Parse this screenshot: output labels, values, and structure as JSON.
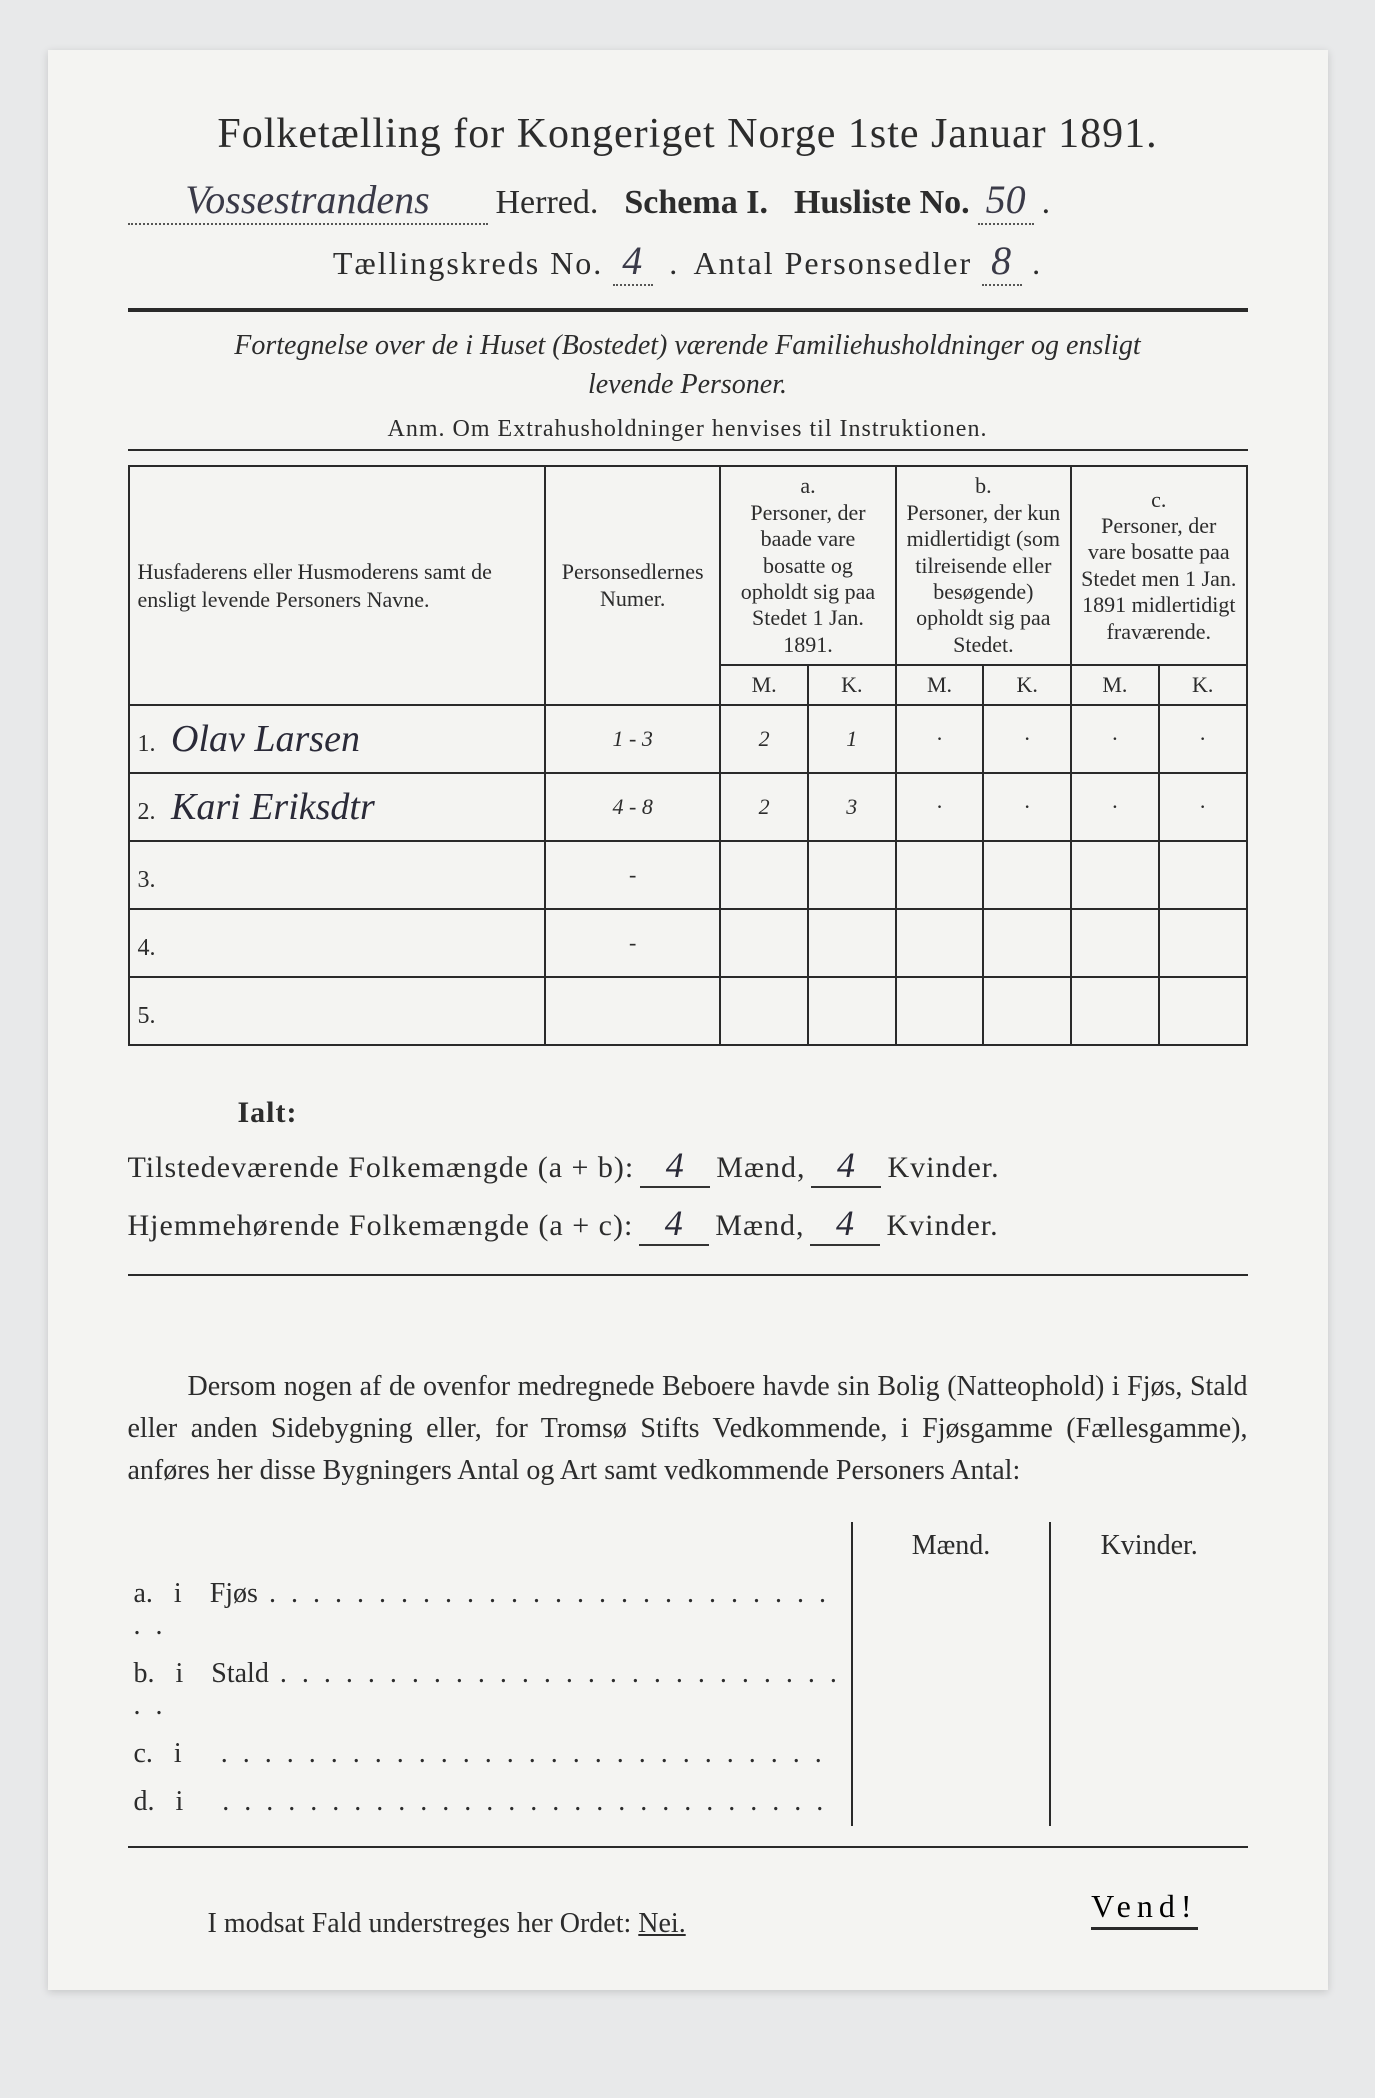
{
  "header": {
    "title": "Folketælling for Kongeriget Norge 1ste Januar 1891.",
    "herred_name": "Vossestrandens",
    "herred_label": "Herred.",
    "schema_label": "Schema I.",
    "husliste_label": "Husliste No.",
    "husliste_no": "50",
    "kreds_label": "Tællingskreds No.",
    "kreds_no": "4",
    "antal_label": "Antal Personsedler",
    "antal_no": "8"
  },
  "subtitle": {
    "line1": "Fortegnelse over de i Huset (Bostedet) værende Familiehusholdninger og ensligt",
    "line2": "levende Personer.",
    "anm": "Anm. Om Extrahusholdninger henvises til Instruktionen."
  },
  "table": {
    "col_name": "Husfaderens eller Husmoderens samt de ensligt levende Personers Navne.",
    "col_num": "Personsedlernes Numer.",
    "col_a_letter": "a.",
    "col_a": "Personer, der baade vare bosatte og opholdt sig paa Stedet 1 Jan. 1891.",
    "col_b_letter": "b.",
    "col_b": "Personer, der kun midlertidigt (som tilreisende eller besøgende) opholdt sig paa Stedet.",
    "col_c_letter": "c.",
    "col_c": "Personer, der vare bosatte paa Stedet men 1 Jan. 1891 midlertidigt fraværende.",
    "m": "M.",
    "k": "K.",
    "rows": [
      {
        "n": "1.",
        "name": "Olav Larsen",
        "num": "1 - 3",
        "am": "2",
        "ak": "1",
        "bm": "·",
        "bk": "·",
        "cm": "·",
        "ck": "·"
      },
      {
        "n": "2.",
        "name": "Kari Eriksdtr",
        "num": "4 - 8",
        "am": "2",
        "ak": "3",
        "bm": "·",
        "bk": "·",
        "cm": "·",
        "ck": "·"
      },
      {
        "n": "3.",
        "name": "",
        "num": "-",
        "am": "",
        "ak": "",
        "bm": "",
        "bk": "",
        "cm": "",
        "ck": ""
      },
      {
        "n": "4.",
        "name": "",
        "num": "-",
        "am": "",
        "ak": "",
        "bm": "",
        "bk": "",
        "cm": "",
        "ck": ""
      },
      {
        "n": "5.",
        "name": "",
        "num": "",
        "am": "",
        "ak": "",
        "bm": "",
        "bk": "",
        "cm": "",
        "ck": ""
      }
    ]
  },
  "totals": {
    "ialt": "Ialt:",
    "present_label": "Tilstedeværende Folkemængde (a + b):",
    "present_m": "4",
    "present_k": "4",
    "home_label": "Hjemmehørende Folkemængde (a + c):",
    "home_m": "4",
    "home_k": "4",
    "maend": "Mænd,",
    "kvinder": "Kvinder."
  },
  "para": "Dersom nogen af de ovenfor medregnede Beboere havde sin Bolig (Natteophold) i Fjøs, Stald eller anden Sidebygning eller, for Tromsø Stifts Vedkommende, i Fjøsgamme (Fællesgamme), anføres her disse Bygningers Antal og Art samt vedkommende Personers Antal:",
  "bldg": {
    "maend": "Mænd.",
    "kvinder": "Kvinder.",
    "rows": [
      {
        "l": "a.",
        "i": "i",
        "name": "Fjøs"
      },
      {
        "l": "b.",
        "i": "i",
        "name": "Stald"
      },
      {
        "l": "c.",
        "i": "i",
        "name": ""
      },
      {
        "l": "d.",
        "i": "i",
        "name": ""
      }
    ]
  },
  "footer": {
    "text": "I modsat Fald understreges her Ordet:",
    "nei": "Nei.",
    "vend": "Vend!"
  }
}
